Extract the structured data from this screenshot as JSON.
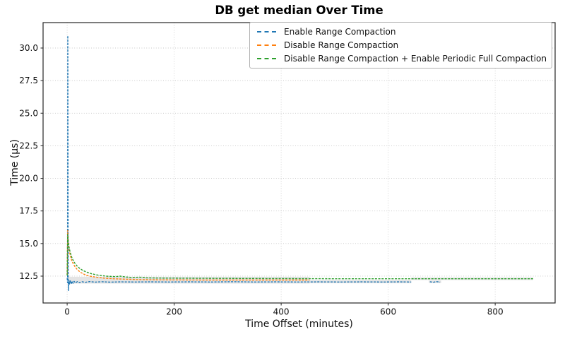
{
  "chart_data": {
    "type": "line",
    "title": "DB get median Over Time",
    "xlabel": "Time Offset (minutes)",
    "ylabel": "Time (µs)",
    "xlim": [
      -45,
      912
    ],
    "ylim": [
      10.44,
      31.95
    ],
    "xticks": [
      0,
      200,
      400,
      600,
      800
    ],
    "yticks": [
      12.5,
      15.0,
      17.5,
      20.0,
      22.5,
      25.0,
      27.5,
      30.0
    ],
    "grid": "dotted both axes",
    "legend_position": "upper right inside axes",
    "line_style": "small dashes",
    "band_color": "#9e9e9e",
    "band_opacity": 0.28,
    "series": [
      {
        "name": "Enable Range Compaction",
        "color": "#1f77b4",
        "dash": "3,1.7",
        "segments": [
          [
            [
              0,
              12.35
            ],
            [
              0.8,
              12.0
            ],
            [
              1.2,
              30.95
            ],
            [
              1.9,
              12.4
            ],
            [
              2.5,
              11.4
            ],
            [
              3.3,
              12.15
            ],
            [
              4.5,
              11.9
            ],
            [
              6,
              12.18
            ],
            [
              7.5,
              11.88
            ],
            [
              9,
              12.12
            ],
            [
              11,
              11.95
            ],
            [
              13,
              12.1
            ],
            [
              16,
              11.98
            ],
            [
              19,
              12.08
            ],
            [
              23,
              12.0
            ],
            [
              28,
              12.07
            ],
            [
              34,
              12.02
            ],
            [
              42,
              12.08
            ],
            [
              52,
              12.04
            ],
            [
              65,
              12.07
            ],
            [
              80,
              12.04
            ],
            [
              100,
              12.06
            ],
            [
              125,
              12.05
            ],
            [
              155,
              12.06
            ],
            [
              190,
              12.05
            ],
            [
              230,
              12.06
            ],
            [
              270,
              12.05
            ],
            [
              310,
              12.07
            ],
            [
              350,
              12.05
            ],
            [
              390,
              12.06
            ],
            [
              430,
              12.05
            ],
            [
              470,
              12.06
            ],
            [
              510,
              12.05
            ],
            [
              550,
              12.06
            ],
            [
              590,
              12.05
            ],
            [
              620,
              12.06
            ],
            [
              643,
              12.05
            ]
          ],
          [
            [
              678,
              12.07
            ],
            [
              684,
              12.02
            ],
            [
              690,
              12.08
            ],
            [
              697,
              12.04
            ]
          ]
        ]
      },
      {
        "name": "Disable Range Compaction",
        "color": "#ff7f0e",
        "dash": "3,1.7",
        "segments": [
          [
            [
              0,
              12.6
            ],
            [
              0.9,
              16.0
            ],
            [
              1.5,
              15.55
            ],
            [
              2.3,
              15.1
            ],
            [
              3.5,
              14.6
            ],
            [
              5,
              14.25
            ],
            [
              7,
              13.9
            ],
            [
              9,
              13.65
            ],
            [
              12,
              13.4
            ],
            [
              15,
              13.2
            ],
            [
              19,
              13.0
            ],
            [
              24,
              12.82
            ],
            [
              30,
              12.68
            ],
            [
              37,
              12.55
            ],
            [
              46,
              12.47
            ],
            [
              57,
              12.4
            ],
            [
              70,
              12.34
            ],
            [
              86,
              12.3
            ],
            [
              105,
              12.27
            ],
            [
              130,
              12.24
            ],
            [
              160,
              12.22
            ],
            [
              200,
              12.21
            ],
            [
              250,
              12.2
            ],
            [
              310,
              12.2
            ],
            [
              380,
              12.2
            ],
            [
              453,
              12.2
            ]
          ]
        ]
      },
      {
        "name": "Disable Range Compaction + Enable Periodic Full Compaction",
        "color": "#2ca02c",
        "dash": "3,1.7",
        "segments": [
          [
            [
              0,
              12.55
            ],
            [
              0.9,
              15.7
            ],
            [
              1.5,
              15.4
            ],
            [
              2.3,
              15.1
            ],
            [
              3.5,
              14.75
            ],
            [
              5,
              14.45
            ],
            [
              7,
              14.15
            ],
            [
              9,
              13.9
            ],
            [
              12,
              13.65
            ],
            [
              15,
              13.45
            ],
            [
              19,
              13.25
            ],
            [
              24,
              13.08
            ],
            [
              30,
              12.92
            ],
            [
              37,
              12.8
            ],
            [
              46,
              12.68
            ],
            [
              57,
              12.58
            ],
            [
              73,
              12.5
            ],
            [
              90,
              12.46
            ],
            [
              99,
              12.5
            ],
            [
              108,
              12.44
            ],
            [
              120,
              12.4
            ],
            [
              140,
              12.42
            ],
            [
              148,
              12.37
            ],
            [
              170,
              12.35
            ],
            [
              210,
              12.34
            ],
            [
              260,
              12.33
            ],
            [
              330,
              12.32
            ],
            [
              420,
              12.31
            ],
            [
              520,
              12.3
            ],
            [
              640,
              12.3
            ],
            [
              760,
              12.3
            ],
            [
              871,
              12.3
            ]
          ]
        ]
      }
    ],
    "bands": [
      {
        "x1": 0.3,
        "x2": 3.2,
        "y1": 12.3,
        "y2": 16.05
      },
      {
        "x1": 3.2,
        "x2": 453,
        "y1": 11.93,
        "y2": 12.45
      },
      {
        "x1": 453,
        "x2": 643,
        "y1": 11.95,
        "y2": 12.22
      },
      {
        "x1": 643,
        "x2": 871,
        "y1": 12.2,
        "y2": 12.4
      },
      {
        "x1": 676,
        "x2": 699,
        "y1": 11.97,
        "y2": 12.17
      }
    ]
  }
}
